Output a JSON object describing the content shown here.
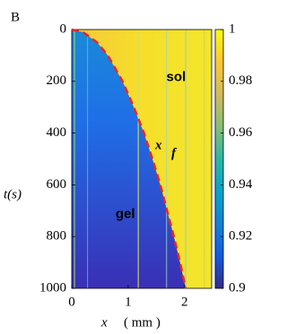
{
  "chart_data": {
    "type": "heatmap",
    "panel_label": "B",
    "xlabel": "x",
    "xunit": "( mm )",
    "ylabel": "t(s)",
    "xlim": [
      0,
      2.48
    ],
    "xticks": [
      0,
      1,
      2
    ],
    "ylim": [
      0,
      1000
    ],
    "y_inverted": true,
    "yticks": [
      0,
      200,
      400,
      600,
      800,
      1000
    ],
    "clim": [
      0.9,
      1
    ],
    "cticks": [
      0.9,
      0.92,
      0.94,
      0.96,
      0.98,
      1
    ],
    "colormap": [
      "#352a87",
      "#0f5cdd",
      "#1481d6",
      "#06a4ca",
      "#2eb7a4",
      "#87bf77",
      "#d1bb59",
      "#fec832",
      "#f9fb0e"
    ],
    "annotations": [
      {
        "text": "sol",
        "x": 1.85,
        "y": 185,
        "color": "#000000"
      },
      {
        "text": "gel",
        "x": 0.95,
        "y": 715,
        "color": "#ffffff"
      }
    ],
    "curve": {
      "label": "x",
      "label_sub": "f",
      "color": "#e8262b",
      "x": [
        0,
        0.2,
        0.45,
        0.64,
        0.9,
        1.1,
        1.28,
        1.43,
        1.57,
        1.69,
        1.81,
        1.92,
        2.02
      ],
      "t": [
        0,
        10,
        50,
        100,
        200,
        300,
        400,
        500,
        600,
        700,
        800,
        900,
        1000
      ]
    }
  }
}
